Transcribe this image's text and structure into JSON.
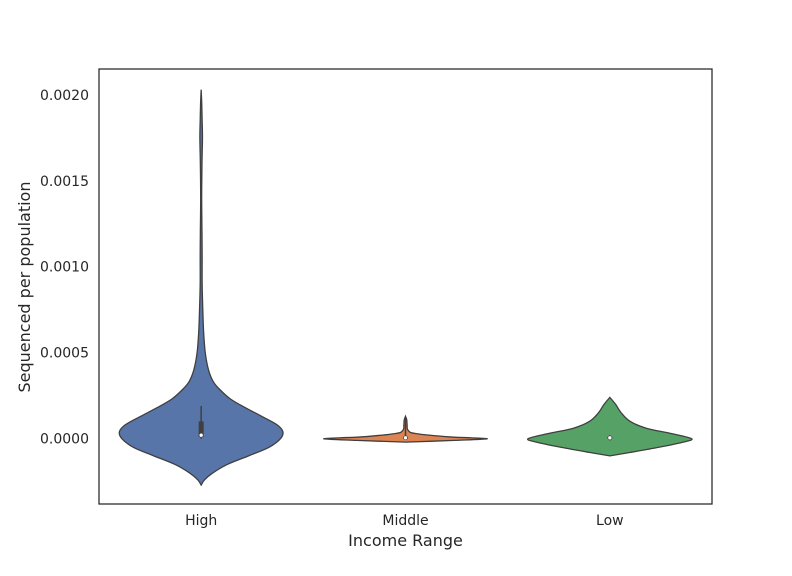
{
  "chart_data": {
    "type": "violin",
    "xlabel": "Income Range",
    "ylabel": "Sequenced per population",
    "ylim": [
      -0.00038,
      0.00215
    ],
    "yticks": [
      "0.0000",
      "0.0005",
      "0.0010",
      "0.0015",
      "0.0020"
    ],
    "ytick_values": [
      0.0,
      0.0005,
      0.001,
      0.0015,
      0.002
    ],
    "grid": false,
    "categories": [
      "High",
      "Middle",
      "Low"
    ],
    "series": [
      {
        "category": "High",
        "color": "#5875a9",
        "q1": 1e-05,
        "median": 2e-05,
        "q3": 0.0001,
        "whisker_low": 0.0,
        "whisker_high": 0.00019,
        "profile": [
          [
            -0.00027,
            0.0
          ],
          [
            -0.00024,
            0.04
          ],
          [
            -0.0002,
            0.14
          ],
          [
            -0.00015,
            0.32
          ],
          [
            -0.0001,
            0.58
          ],
          [
            -5e-05,
            0.83
          ],
          [
            0.0,
            0.97
          ],
          [
            4e-05,
            1.0
          ],
          [
            8e-05,
            0.93
          ],
          [
            0.00013,
            0.74
          ],
          [
            0.00018,
            0.54
          ],
          [
            0.00023,
            0.36
          ],
          [
            0.00028,
            0.24
          ],
          [
            0.00033,
            0.15
          ],
          [
            0.0004,
            0.09
          ],
          [
            0.0005,
            0.05
          ],
          [
            0.00062,
            0.03
          ],
          [
            0.00075,
            0.02
          ],
          [
            0.0009,
            0.012
          ],
          [
            0.00105,
            0.012
          ],
          [
            0.0012,
            0.01
          ],
          [
            0.0014,
            0.006
          ],
          [
            0.0016,
            0.01
          ],
          [
            0.00175,
            0.016
          ],
          [
            0.00185,
            0.012
          ],
          [
            0.00195,
            0.007
          ],
          [
            0.00203,
            0.0
          ]
        ]
      },
      {
        "category": "Middle",
        "color": "#dd8453",
        "q1": 0.0,
        "median": 5e-06,
        "q3": 1e-05,
        "whisker_low": 0.0,
        "whisker_high": 0.00012,
        "profile": [
          [
            -2e-05,
            0.0
          ],
          [
            -1e-05,
            0.6
          ],
          [
            0.0,
            1.0
          ],
          [
            1e-05,
            0.55
          ],
          [
            3e-05,
            0.12
          ],
          [
            5e-05,
            0.03
          ],
          [
            8e-05,
            0.02
          ],
          [
            0.00011,
            0.015
          ],
          [
            0.00013,
            0.0
          ]
        ]
      },
      {
        "category": "Low",
        "color": "#56a266",
        "q1": 0.0,
        "median": 5e-06,
        "q3": 1e-05,
        "whisker_low": -1e-05,
        "whisker_high": 2e-05,
        "profile": [
          [
            -0.0001,
            0.0
          ],
          [
            -8e-05,
            0.25
          ],
          [
            -5e-05,
            0.6
          ],
          [
            -2e-05,
            0.9
          ],
          [
            0.0,
            1.0
          ],
          [
            3e-05,
            0.75
          ],
          [
            6e-05,
            0.45
          ],
          [
            0.0001,
            0.25
          ],
          [
            0.00015,
            0.14
          ],
          [
            0.0002,
            0.07
          ],
          [
            0.00024,
            0.0
          ]
        ]
      }
    ]
  }
}
